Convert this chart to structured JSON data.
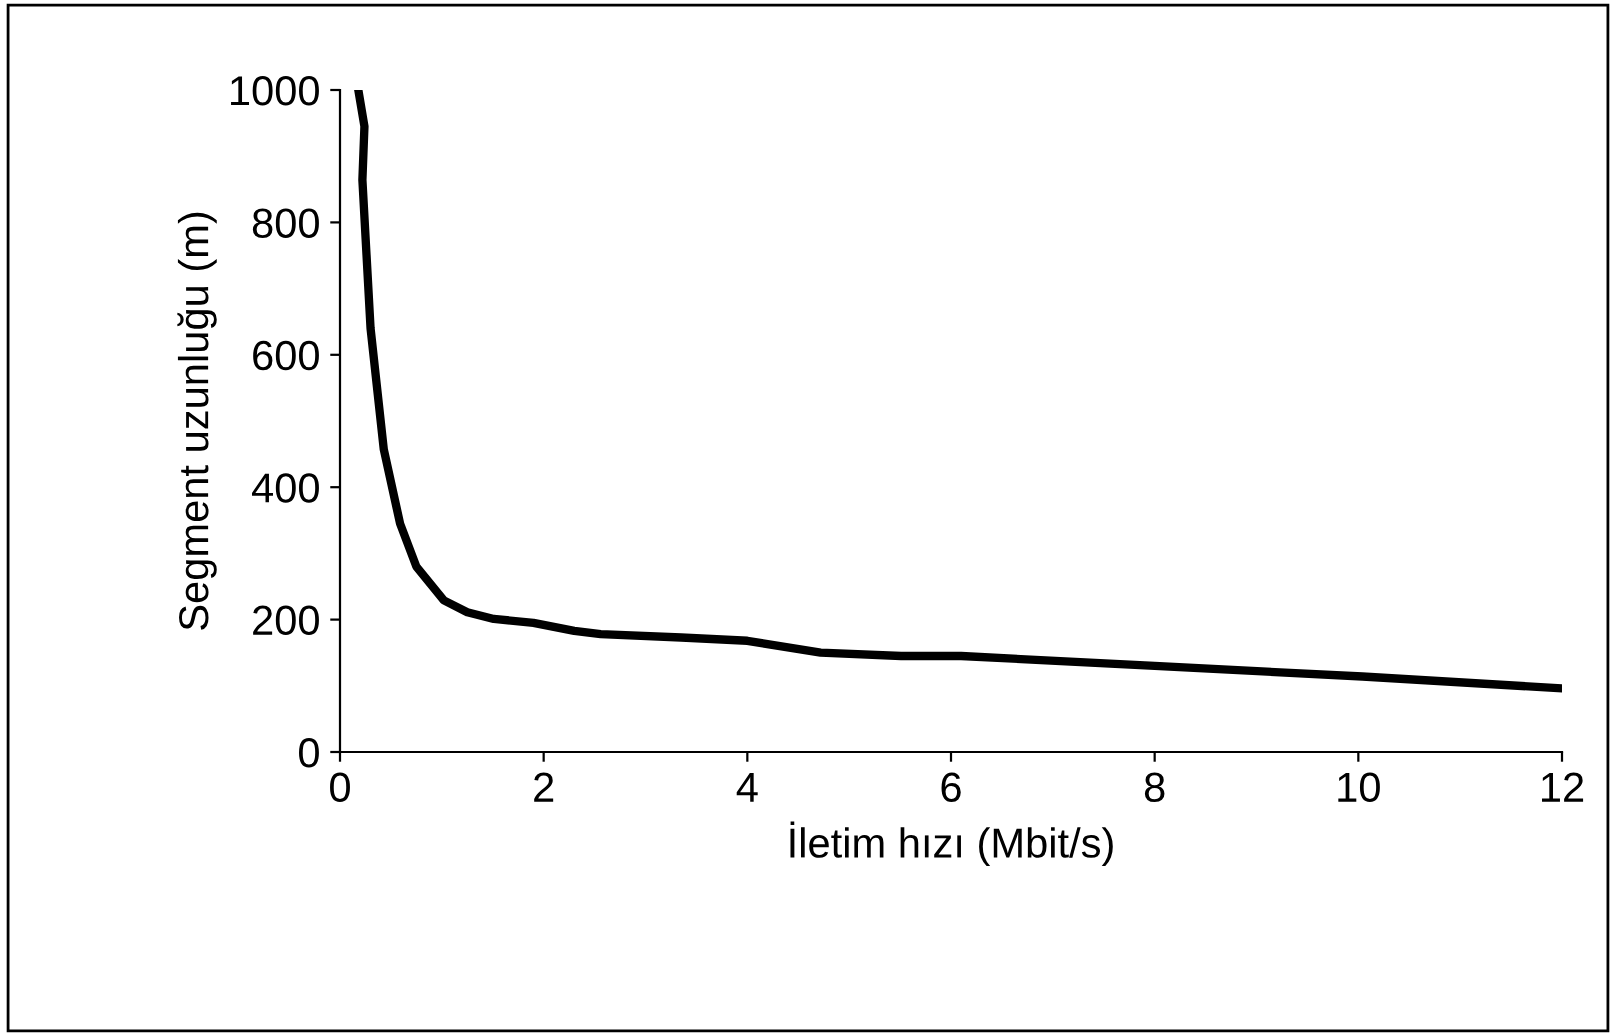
{
  "chart_data": {
    "type": "line",
    "xlabel": "İletim hızı (Mbit/s)",
    "ylabel": "Segment uzunluğu (m)",
    "x": [
      0.18,
      0.24,
      0.22,
      0.3,
      0.43,
      0.59,
      0.75,
      1.02,
      1.25,
      1.51,
      1.9,
      2.3,
      2.56,
      3.35,
      4.0,
      4.72,
      5.51,
      6.1,
      8.0,
      10.04,
      12.0
    ],
    "series": [
      {
        "color": "#000000",
        "values": [
          1000,
          945,
          864,
          640,
          457,
          345,
          280,
          229,
          211,
          201,
          195,
          183,
          178,
          173,
          168,
          150,
          145,
          145,
          130,
          114,
          96
        ]
      }
    ],
    "xlim": [
      0,
      12
    ],
    "xticks": [
      0,
      2,
      4,
      6,
      8,
      10,
      12
    ],
    "ylim": [
      0,
      1000
    ],
    "yticks": [
      0,
      200,
      400,
      600,
      800,
      1000
    ],
    "grid": false,
    "legend": false,
    "marker": "none",
    "line_style": "solid"
  }
}
